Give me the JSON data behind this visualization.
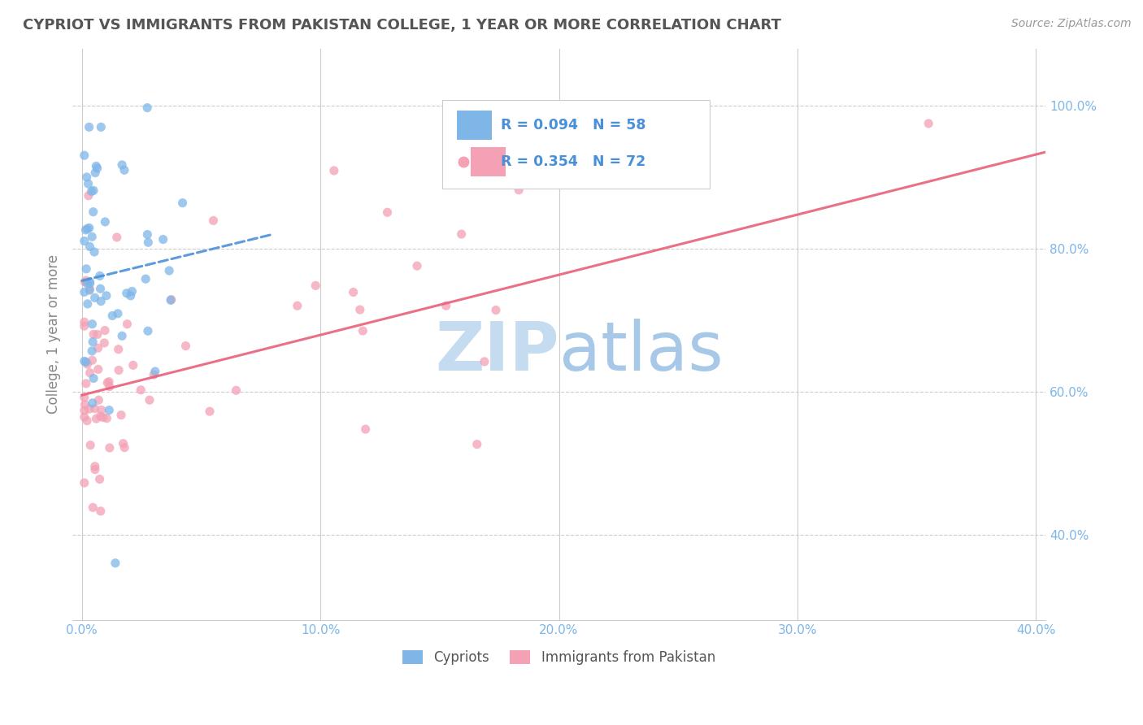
{
  "title": "CYPRIOT VS IMMIGRANTS FROM PAKISTAN COLLEGE, 1 YEAR OR MORE CORRELATION CHART",
  "source_text": "Source: ZipAtlas.com",
  "ylabel": "College, 1 year or more",
  "xlim": [
    -0.004,
    0.404
  ],
  "ylim": [
    0.28,
    1.08
  ],
  "xtick_labels": [
    "0.0%",
    "10.0%",
    "20.0%",
    "30.0%",
    "40.0%"
  ],
  "ytick_labels": [
    "40.0%",
    "60.0%",
    "80.0%",
    "100.0%"
  ],
  "ytick_values": [
    0.4,
    0.6,
    0.8,
    1.0
  ],
  "xtick_values": [
    0.0,
    0.1,
    0.2,
    0.3,
    0.4
  ],
  "legend_label1": "Cypriots",
  "legend_label2": "Immigrants from Pakistan",
  "r1": 0.094,
  "n1": 58,
  "r2": 0.354,
  "n2": 72,
  "blue_color": "#7EB6E8",
  "pink_color": "#F4A0B5",
  "blue_line_color": "#4A90D9",
  "pink_line_color": "#E8607A",
  "tick_color": "#7EB6E8",
  "watermark_zip_color": "#C8DDF0",
  "watermark_atlas_color": "#A8C8E8",
  "blue_trend_x0": 0.0,
  "blue_trend_y0": 0.755,
  "blue_trend_x1": 0.08,
  "blue_trend_y1": 0.82,
  "pink_trend_x0": 0.0,
  "pink_trend_y0": 0.595,
  "pink_trend_x1": 0.404,
  "pink_trend_y1": 0.935
}
